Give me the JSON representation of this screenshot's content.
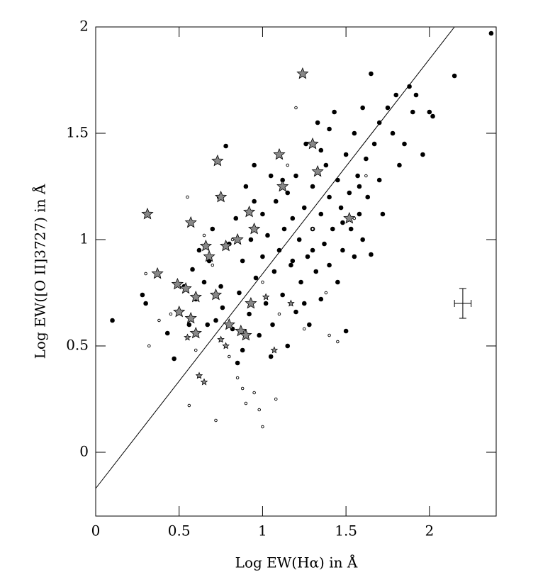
{
  "chart_data": {
    "type": "scatter",
    "xlabel": "Log EW(Hα) in Å",
    "ylabel": "Log EW([O II]3727) in Å",
    "xlim": [
      0,
      2.4
    ],
    "ylim": [
      -0.3,
      2
    ],
    "xticks": [
      0,
      0.5,
      1,
      1.5,
      2
    ],
    "yticks": [
      0,
      0.5,
      1,
      1.5,
      2
    ],
    "series": [
      {
        "marker": "filled-circle",
        "color": "#000000",
        "x": [
          0.1,
          0.28,
          0.3,
          0.43,
          0.47,
          0.5,
          0.53,
          0.56,
          0.58,
          0.6,
          0.62,
          0.65,
          0.68,
          0.7,
          0.72,
          0.74,
          0.76,
          0.78,
          0.8,
          0.82,
          0.84,
          0.85,
          0.86,
          0.88,
          0.9,
          0.92,
          0.93,
          0.95,
          0.96,
          0.98,
          1.0,
          1.0,
          1.02,
          1.03,
          1.05,
          1.06,
          1.07,
          1.08,
          1.1,
          1.1,
          1.12,
          1.13,
          1.15,
          1.15,
          1.17,
          1.18,
          1.2,
          1.2,
          1.22,
          1.23,
          1.25,
          1.26,
          1.27,
          1.28,
          1.3,
          1.3,
          1.32,
          1.33,
          1.35,
          1.35,
          1.37,
          1.38,
          1.4,
          1.4,
          1.42,
          1.43,
          1.45,
          1.45,
          1.47,
          1.48,
          1.5,
          1.5,
          1.52,
          1.53,
          1.55,
          1.55,
          1.57,
          1.58,
          1.6,
          1.6,
          1.62,
          1.63,
          1.65,
          1.65,
          1.67,
          1.7,
          1.7,
          1.72,
          1.75,
          1.78,
          1.8,
          1.82,
          1.85,
          1.88,
          1.9,
          1.92,
          1.96,
          2.0,
          2.02,
          2.15,
          2.37,
          1.25,
          1.35,
          1.12,
          0.95,
          1.05,
          0.88,
          1.4,
          1.58,
          1.48,
          1.18,
          0.75,
          0.67,
          1.3
        ],
        "y": [
          0.62,
          0.74,
          0.7,
          0.56,
          0.44,
          0.66,
          0.78,
          0.6,
          0.86,
          0.72,
          0.95,
          0.8,
          0.9,
          1.05,
          0.62,
          1.2,
          0.68,
          1.44,
          0.98,
          0.58,
          1.1,
          0.42,
          0.75,
          0.9,
          1.25,
          0.65,
          1.0,
          1.35,
          0.82,
          0.55,
          1.12,
          0.92,
          0.7,
          1.02,
          1.3,
          0.6,
          0.85,
          1.18,
          0.95,
          1.4,
          0.74,
          1.05,
          0.5,
          1.22,
          0.88,
          1.1,
          0.66,
          1.3,
          1.0,
          0.8,
          1.15,
          1.45,
          0.92,
          0.6,
          1.05,
          1.25,
          0.85,
          1.55,
          1.12,
          0.72,
          0.98,
          1.35,
          1.2,
          0.88,
          1.05,
          1.6,
          0.8,
          1.28,
          1.15,
          0.95,
          1.4,
          0.57,
          1.22,
          1.05,
          1.5,
          0.92,
          1.3,
          1.12,
          1.62,
          1.0,
          1.38,
          1.2,
          1.78,
          0.93,
          1.45,
          1.28,
          1.55,
          1.12,
          1.62,
          1.5,
          1.68,
          1.35,
          1.45,
          1.72,
          1.6,
          1.68,
          1.4,
          1.6,
          1.58,
          1.77,
          1.97,
          0.7,
          1.42,
          1.28,
          1.18,
          0.45,
          0.48,
          1.52,
          1.25,
          1.08,
          0.9,
          0.78,
          0.6,
          0.95
        ]
      },
      {
        "marker": "open-circle",
        "color": "#000000",
        "x": [
          0.3,
          0.32,
          0.38,
          0.45,
          0.55,
          0.56,
          0.6,
          0.72,
          0.8,
          0.85,
          0.88,
          0.9,
          0.95,
          0.98,
          1.0,
          1.08,
          1.2,
          1.25,
          1.4,
          1.38,
          1.45,
          1.0,
          1.1,
          0.7,
          0.65,
          1.3,
          1.55,
          1.62,
          0.82,
          1.15
        ],
        "y": [
          0.84,
          0.5,
          0.62,
          0.65,
          1.2,
          0.22,
          0.48,
          0.15,
          0.45,
          0.35,
          0.3,
          0.23,
          0.28,
          0.2,
          0.12,
          0.25,
          1.62,
          0.58,
          0.55,
          0.75,
          0.52,
          0.8,
          0.65,
          0.88,
          1.02,
          1.05,
          1.1,
          1.3,
          1.0,
          1.35
        ]
      },
      {
        "marker": "large-star",
        "color": "#888888",
        "x": [
          0.31,
          0.37,
          0.49,
          0.54,
          0.57,
          0.57,
          0.6,
          0.6,
          0.66,
          0.68,
          0.73,
          0.75,
          0.78,
          0.8,
          0.85,
          0.87,
          0.9,
          0.92,
          0.93,
          0.95,
          1.1,
          1.12,
          1.24,
          1.3,
          1.33,
          1.52,
          0.72,
          0.5
        ],
        "y": [
          1.12,
          0.84,
          0.79,
          0.77,
          1.08,
          0.63,
          0.73,
          0.56,
          0.97,
          0.92,
          1.37,
          1.2,
          0.97,
          0.6,
          1.0,
          0.57,
          0.55,
          1.13,
          0.7,
          1.05,
          1.4,
          1.25,
          1.78,
          1.45,
          1.32,
          1.1,
          0.74,
          0.66
        ]
      },
      {
        "marker": "small-star",
        "color": "#888888",
        "x": [
          0.55,
          0.62,
          0.65,
          0.75,
          1.07,
          0.78,
          1.17,
          1.02
        ],
        "y": [
          0.54,
          0.36,
          0.33,
          0.53,
          0.48,
          0.5,
          0.7,
          0.73
        ]
      }
    ],
    "fit_line": {
      "x": [
        0,
        2.15
      ],
      "y": [
        -0.17,
        2
      ]
    },
    "error_bar": {
      "x": 2.2,
      "y": 0.7,
      "xerr": 0.05,
      "yerr": 0.07
    }
  }
}
